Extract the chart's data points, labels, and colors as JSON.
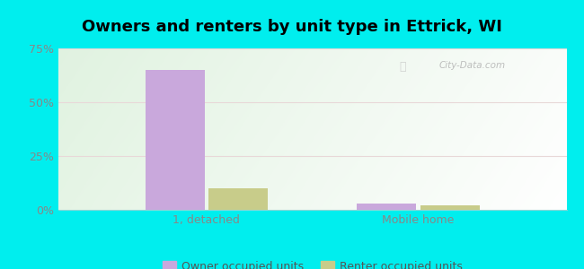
{
  "title": "Owners and renters by unit type in Ettrick, WI",
  "categories": [
    "1, detached",
    "Mobile home"
  ],
  "owner_values": [
    65.0,
    3.0
  ],
  "renter_values": [
    10.0,
    2.0
  ],
  "owner_color": "#c9a8dc",
  "renter_color": "#c8cc8a",
  "ylim": [
    0,
    75
  ],
  "yticks": [
    0,
    25,
    50,
    75
  ],
  "ytick_labels": [
    "0%",
    "25%",
    "50%",
    "75%"
  ],
  "outer_bg": "#00eeee",
  "bar_width": 0.28,
  "watermark": "City-Data.com",
  "legend_labels": [
    "Owner occupied units",
    "Renter occupied units"
  ],
  "grid_color": "#ddddcc",
  "tick_color": "#888888",
  "bg_topleft": "#d8eed8",
  "bg_topright": "#eef8f0",
  "bg_bottomleft": "#e8f5e0",
  "bg_bottomright": "#f8fef8"
}
